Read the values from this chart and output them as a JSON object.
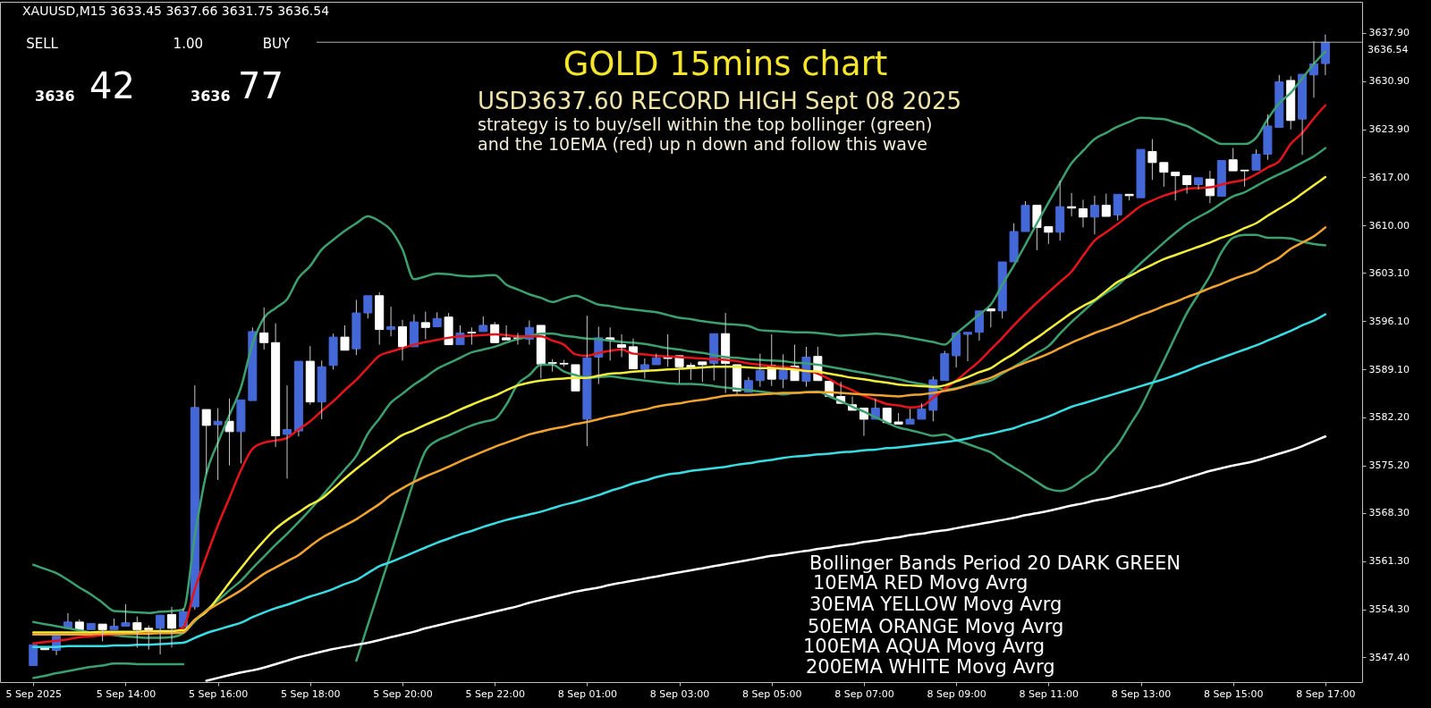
{
  "chart_data": {
    "type": "candlestick",
    "title": "GOLD 15mins chart",
    "subtitle": "USD3637.60  RECORD HIGH Sept 08 2025",
    "annotations": [
      "XAUUSD,M15  3633.45 3637.66 3631.75 3636.54",
      "SELL",
      "1.00",
      "BUY",
      "3636",
      "42",
      "3636",
      "77",
      "strategy is to buy/sell within the top bollinger (green)",
      "and the 10EMA (red) up n down and follow this wave",
      "Bollinger Bands Period 20 DARK GREEN",
      "10EMA RED Movg Avrg",
      "30EMA YELLOW Movg Avrg",
      "50EMA ORANGE Movg Avrg",
      "100EMA AQUA Movg Avrg",
      "200EMA WHITE Movg Avrg"
    ],
    "categories": [
      "5 Sep 2025",
      null,
      null,
      null,
      null,
      null,
      null,
      null,
      "5 Sep 14:00",
      null,
      null,
      null,
      null,
      null,
      null,
      null,
      "5 Sep 16:00",
      null,
      null,
      null,
      null,
      null,
      null,
      null,
      "5 Sep 18:00",
      null,
      null,
      null,
      null,
      null,
      null,
      null,
      "5 Sep 20:00",
      null,
      null,
      null,
      null,
      null,
      null,
      null,
      "5 Sep 22:00",
      null,
      null,
      null,
      null,
      null,
      null,
      null,
      "8 Sep 01:00",
      null,
      null,
      null,
      null,
      null,
      null,
      null,
      "8 Sep 03:00",
      null,
      null,
      null,
      null,
      null,
      null,
      null,
      "8 Sep 05:00",
      null,
      null,
      null,
      null,
      null,
      null,
      null,
      "8 Sep 07:00",
      null,
      null,
      null,
      null,
      null,
      null,
      null,
      "8 Sep 09:00",
      null,
      null,
      null,
      null,
      null,
      null,
      null,
      "8 Sep 11:00",
      null,
      null,
      null,
      null,
      null,
      null,
      null,
      "8 Sep 13:00",
      null,
      null,
      null,
      null,
      null,
      null,
      null,
      "8 Sep 15:00",
      null,
      null,
      null,
      null,
      null,
      null,
      null,
      "8 Sep 17:00"
    ],
    "ohlc": [
      [
        3546.2,
        3549.5,
        3546.0,
        3549.2
      ],
      [
        3548.8,
        3549.1,
        3548.2,
        3548.5
      ],
      [
        3548.4,
        3550.8,
        3547.7,
        3550.5
      ],
      [
        3551.6,
        3553.8,
        3551.4,
        3552.5
      ],
      [
        3552.5,
        3552.9,
        3551.2,
        3551.4
      ],
      [
        3551.4,
        3552.6,
        3551.1,
        3552.3
      ],
      [
        3552.2,
        3552.5,
        3549.7,
        3551.4
      ],
      [
        3551.4,
        3553.0,
        3551.1,
        3551.9
      ],
      [
        3551.9,
        3555.1,
        3551.7,
        3552.4
      ],
      [
        3552.4,
        3553.3,
        3548.8,
        3551.4
      ],
      [
        3551.6,
        3552.0,
        3548.5,
        3551.4
      ],
      [
        3551.6,
        3553.8,
        3547.8,
        3553.5
      ],
      [
        3553.6,
        3554.7,
        3548.8,
        3551.6
      ],
      [
        3551.8,
        3554.5,
        3551.5,
        3554.0
      ],
      [
        3554.7,
        3586.8,
        3554.3,
        3583.6
      ],
      [
        3583.3,
        3583.6,
        3574.0,
        3581.0
      ],
      [
        3581.1,
        3583.5,
        3573.1,
        3581.6
      ],
      [
        3581.6,
        3584.9,
        3575.2,
        3580.1
      ],
      [
        3580.1,
        3585.0,
        3575.5,
        3584.7
      ],
      [
        3584.6,
        3595.2,
        3584.4,
        3594.6
      ],
      [
        3594.4,
        3598.1,
        3592.0,
        3593.0
      ],
      [
        3593.0,
        3595.8,
        3577.9,
        3579.5
      ],
      [
        3579.7,
        3586.8,
        3573.3,
        3580.4
      ],
      [
        3580.2,
        3590.4,
        3579.4,
        3590.3
      ],
      [
        3590.3,
        3592.5,
        3584.0,
        3584.4
      ],
      [
        3584.4,
        3590.4,
        3581.9,
        3589.5
      ],
      [
        3589.7,
        3594.3,
        3589.1,
        3593.8
      ],
      [
        3593.8,
        3595.5,
        3591.8,
        3591.9
      ],
      [
        3592.1,
        3599.2,
        3591.2,
        3597.3
      ],
      [
        3597.3,
        3599.9,
        3596.5,
        3599.8
      ],
      [
        3599.8,
        3600.3,
        3592.7,
        3594.9
      ],
      [
        3594.9,
        3598.2,
        3593.9,
        3595.3
      ],
      [
        3595.3,
        3596.3,
        3590.4,
        3592.4
      ],
      [
        3592.4,
        3597.1,
        3592.2,
        3596.0
      ],
      [
        3595.9,
        3597.5,
        3593.5,
        3595.2
      ],
      [
        3595.3,
        3597.4,
        3595.2,
        3596.5
      ],
      [
        3596.7,
        3597.3,
        3592.6,
        3592.7
      ],
      [
        3592.7,
        3595.5,
        3592.6,
        3594.4
      ],
      [
        3594.5,
        3595.2,
        3592.7,
        3594.4
      ],
      [
        3594.6,
        3596.8,
        3594.5,
        3595.5
      ],
      [
        3595.6,
        3596.0,
        3592.7,
        3593.0
      ],
      [
        3593.7,
        3595.5,
        3593.3,
        3593.4
      ],
      [
        3593.7,
        3594.4,
        3592.7,
        3593.6
      ],
      [
        3593.5,
        3596.2,
        3592.7,
        3595.2
      ],
      [
        3595.5,
        3595.6,
        3587.8,
        3589.9
      ],
      [
        3590.1,
        3590.6,
        3588.8,
        3590.0
      ],
      [
        3590.0,
        3590.5,
        3589.5,
        3589.9
      ],
      [
        3589.8,
        3590.1,
        3585.8,
        3586.0
      ],
      [
        3581.9,
        3596.9,
        3578.0,
        3590.8
      ],
      [
        3590.9,
        3595.3,
        3587.0,
        3593.7
      ],
      [
        3593.7,
        3595.2,
        3590.4,
        3593.3
      ],
      [
        3592.7,
        3594.2,
        3590.9,
        3592.3
      ],
      [
        3592.4,
        3593.6,
        3589.1,
        3589.2
      ],
      [
        3589.1,
        3590.7,
        3587.8,
        3589.8
      ],
      [
        3589.8,
        3591.4,
        3589.7,
        3590.8
      ],
      [
        3591.0,
        3594.2,
        3589.5,
        3590.7
      ],
      [
        3591.1,
        3591.3,
        3587.1,
        3589.5
      ],
      [
        3589.7,
        3590.1,
        3587.6,
        3589.4
      ],
      [
        3590.2,
        3590.5,
        3587.3,
        3589.8
      ],
      [
        3590.0,
        3594.4,
        3587.5,
        3594.3
      ],
      [
        3594.3,
        3597.3,
        3585.7,
        3590.0
      ],
      [
        3589.8,
        3590.0,
        3585.5,
        3586.0
      ],
      [
        3585.8,
        3588.0,
        3585.5,
        3587.5
      ],
      [
        3587.5,
        3591.4,
        3586.6,
        3589.0
      ],
      [
        3589.7,
        3594.2,
        3586.7,
        3587.7
      ],
      [
        3587.7,
        3591.3,
        3586.4,
        3589.0
      ],
      [
        3589.6,
        3592.7,
        3587.3,
        3587.5
      ],
      [
        3587.4,
        3592.4,
        3586.6,
        3590.9
      ],
      [
        3591.0,
        3592.4,
        3587.2,
        3587.5
      ],
      [
        3587.4,
        3587.6,
        3584.9,
        3585.2
      ],
      [
        3585.2,
        3587.3,
        3583.9,
        3584.2
      ],
      [
        3584.0,
        3585.2,
        3582.9,
        3583.2
      ],
      [
        3583.5,
        3583.7,
        3579.5,
        3581.9
      ],
      [
        3581.9,
        3584.9,
        3581.7,
        3583.5
      ],
      [
        3583.5,
        3583.8,
        3581.2,
        3581.4
      ],
      [
        3581.5,
        3582.8,
        3581.0,
        3581.2
      ],
      [
        3581.2,
        3583.4,
        3581.0,
        3581.9
      ],
      [
        3581.9,
        3584.2,
        3581.7,
        3583.4
      ],
      [
        3583.2,
        3588.1,
        3581.6,
        3587.6
      ],
      [
        3587.5,
        3591.8,
        3587.3,
        3591.4
      ],
      [
        3591.1,
        3594.6,
        3589.4,
        3594.4
      ],
      [
        3594.2,
        3594.8,
        3590.3,
        3594.5
      ],
      [
        3594.5,
        3597.8,
        3593.3,
        3597.6
      ],
      [
        3597.9,
        3598.0,
        3595.2,
        3597.6
      ],
      [
        3597.6,
        3605.0,
        3596.5,
        3604.7
      ],
      [
        3604.7,
        3610.3,
        3604.5,
        3609.1
      ],
      [
        3609.1,
        3613.5,
        3608.9,
        3612.9
      ],
      [
        3612.9,
        3613.1,
        3606.4,
        3609.7
      ],
      [
        3609.8,
        3610.1,
        3607.3,
        3609.0
      ],
      [
        3609.0,
        3616.5,
        3607.8,
        3612.7
      ],
      [
        3612.7,
        3614.7,
        3611.3,
        3612.5
      ],
      [
        3612.4,
        3613.7,
        3609.7,
        3611.2
      ],
      [
        3611.2,
        3614.3,
        3608.7,
        3612.9
      ],
      [
        3612.9,
        3614.6,
        3611.0,
        3611.3
      ],
      [
        3611.5,
        3614.7,
        3610.7,
        3614.5
      ],
      [
        3614.5,
        3614.7,
        3613.6,
        3614.3
      ],
      [
        3614.0,
        3621.2,
        3613.8,
        3621.0
      ],
      [
        3620.7,
        3622.5,
        3616.6,
        3619.1
      ],
      [
        3619.1,
        3619.3,
        3615.6,
        3617.7
      ],
      [
        3617.7,
        3617.9,
        3613.6,
        3617.2
      ],
      [
        3617.2,
        3617.5,
        3614.6,
        3615.9
      ],
      [
        3615.9,
        3617.2,
        3615.2,
        3616.9
      ],
      [
        3616.7,
        3617.9,
        3613.2,
        3614.3
      ],
      [
        3614.2,
        3619.7,
        3614.0,
        3619.4
      ],
      [
        3619.5,
        3621.2,
        3617.7,
        3617.9
      ],
      [
        3618.0,
        3618.3,
        3615.6,
        3617.9
      ],
      [
        3618.0,
        3621.0,
        3617.8,
        3620.3
      ],
      [
        3620.3,
        3626.1,
        3619.5,
        3624.4
      ],
      [
        3624.2,
        3631.8,
        3623.9,
        3630.8
      ],
      [
        3631.0,
        3631.6,
        3623.9,
        3625.2
      ],
      [
        3625.4,
        3632.2,
        3620.2,
        3631.9
      ],
      [
        3631.8,
        3636.7,
        3628.5,
        3633.4
      ],
      [
        3633.45,
        3637.66,
        3631.75,
        3636.54
      ]
    ],
    "colors": [
      "#4468d8",
      "#ffffff",
      "#4468d8",
      "#4468d8",
      "#ffffff",
      "#4468d8",
      "#ffffff",
      "#4468d8",
      "#4468d8",
      "#ffffff",
      "#ffffff",
      "#4468d8",
      "#ffffff",
      "#4468d8",
      "#4468d8",
      "#ffffff",
      "#4468d8",
      "#ffffff",
      "#4468d8",
      "#4468d8",
      "#ffffff",
      "#ffffff",
      "#4468d8",
      "#4468d8",
      "#ffffff",
      "#4468d8",
      "#4468d8",
      "#ffffff",
      "#4468d8",
      "#4468d8",
      "#ffffff",
      "#4468d8",
      "#ffffff",
      "#4468d8",
      "#ffffff",
      "#4468d8",
      "#ffffff",
      "#4468d8",
      "#ffffff",
      "#4468d8",
      "#ffffff",
      "#ffffff",
      "#ffffff",
      "#4468d8",
      "#ffffff",
      "#ffffff",
      "#ffffff",
      "#ffffff",
      "#4468d8",
      "#4468d8",
      "#ffffff",
      "#ffffff",
      "#ffffff",
      "#4468d8",
      "#4468d8",
      "#ffffff",
      "#ffffff",
      "#ffffff",
      "#ffffff",
      "#4468d8",
      "#ffffff",
      "#ffffff",
      "#4468d8",
      "#4468d8",
      "#ffffff",
      "#4468d8",
      "#ffffff",
      "#4468d8",
      "#ffffff",
      "#ffffff",
      "#ffffff",
      "#ffffff",
      "#ffffff",
      "#4468d8",
      "#ffffff",
      "#ffffff",
      "#4468d8",
      "#4468d8",
      "#4468d8",
      "#4468d8",
      "#4468d8",
      "#4468d8",
      "#4468d8",
      "#ffffff",
      "#4468d8",
      "#4468d8",
      "#4468d8",
      "#ffffff",
      "#ffffff",
      "#4468d8",
      "#ffffff",
      "#ffffff",
      "#4468d8",
      "#ffffff",
      "#4468d8",
      "#ffffff",
      "#4468d8",
      "#ffffff",
      "#ffffff",
      "#ffffff",
      "#ffffff",
      "#4468d8",
      "#ffffff",
      "#4468d8",
      "#ffffff",
      "#ffffff",
      "#4468d8",
      "#4468d8",
      "#4468d8",
      "#ffffff",
      "#4468d8",
      "#4468d8",
      "#4468d8"
    ],
    "series": [
      {
        "type": "line",
        "color": "#3ca06e",
        "values": [
          3560.8,
          3560.2,
          3559.6,
          3558.6,
          3557.5,
          3556.5,
          3555.3,
          3554.1,
          3554.0,
          3553.9,
          3553.8,
          3554.0,
          3554.1,
          3554.3,
          3565.0,
          3574.0,
          3578.5,
          3582.5,
          3586.5,
          3592.8,
          3596.6,
          3598.0,
          3599.3,
          3602.4,
          3604.1,
          3606.5,
          3607.9,
          3609.2,
          3610.3,
          3611.3,
          3610.6,
          3609.3,
          3606.5,
          3602.2,
          3602.6,
          3603.0,
          3602.9,
          3602.7,
          3602.6,
          3602.7,
          3602.8,
          3601.4,
          3600.7,
          3600.0,
          3599.5,
          3598.9,
          3599.4,
          3599.8,
          3599.2,
          3598.5,
          3598.3,
          3598.0,
          3597.8,
          3597.6,
          3597.4,
          3597.0,
          3596.6,
          3596.4,
          3596.1,
          3595.9,
          3595.7,
          3595.6,
          3595.4,
          3594.8,
          3594.7,
          3594.6,
          3594.5,
          3594.5,
          3594.4,
          3594.2,
          3594.0,
          3594.1,
          3594.2,
          3594.3,
          3594.2,
          3594.0,
          3593.7,
          3593.4,
          3593.1,
          3592.7,
          3594.3,
          3595.7,
          3597.1,
          3598.5,
          3601.4,
          3604.2,
          3607.2,
          3610.3,
          3613.3,
          3616.2,
          3619.0,
          3620.8,
          3622.5,
          3623.4,
          3624.3,
          3625.0,
          3625.6,
          3625.5,
          3625.4,
          3624.9,
          3624.4,
          3623.5,
          3622.6,
          3621.8,
          3621.8,
          3621.8,
          3622.7,
          3625.4,
          3627.7,
          3629.2,
          3631.3,
          3633.4,
          3635.2
        ]
      },
      {
        "type": "line",
        "color": "#3ca06e",
        "values": [
          3552.5,
          3552.2,
          3551.9,
          3551.6,
          3551.3,
          3551.0,
          3550.8,
          3550.6,
          3550.4,
          3550.3,
          3550.2,
          3550.2,
          3550.3,
          3550.9,
          3552.6,
          3554.2,
          3555.6,
          3557.1,
          3558.5,
          3560.3,
          3562.0,
          3563.7,
          3565.3,
          3567.0,
          3568.8,
          3570.7,
          3572.7,
          3574.6,
          3576.6,
          3579.8,
          3582.0,
          3584.3,
          3585.6,
          3586.9,
          3588.0,
          3589.2,
          3590.0,
          3590.8,
          3591.6,
          3592.0,
          3592.4,
          3593.0,
          3593.5,
          3593.9,
          3594.3,
          3594.3,
          3594.0,
          3593.8,
          3593.6,
          3593.5,
          3593.3,
          3593.1,
          3593.0,
          3592.8,
          3592.5,
          3592.2,
          3592.0,
          3591.7,
          3591.5,
          3591.2,
          3590.9,
          3590.8,
          3590.6,
          3590.5,
          3590.4,
          3590.3,
          3590.1,
          3590.0,
          3589.8,
          3589.5,
          3589.2,
          3588.9,
          3588.6,
          3588.3,
          3588.0,
          3587.7,
          3587.3,
          3587.0,
          3586.6,
          3586.2,
          3586.4,
          3586.8,
          3587.1,
          3587.5,
          3588.5,
          3589.5,
          3590.5,
          3591.5,
          3592.5,
          3594.3,
          3596.0,
          3597.5,
          3599.0,
          3600.2,
          3601.3,
          3602.9,
          3604.5,
          3606.0,
          3607.5,
          3608.9,
          3610.2,
          3611.2,
          3612.1,
          3613.2,
          3614.2,
          3614.8,
          3615.7,
          3616.6,
          3617.4,
          3618.2,
          3619.1,
          3620.0,
          3621.2
        ]
      },
      {
        "type": "line",
        "color": "#3ca06e",
        "values": [
          3544.4,
          3544.7,
          3545.1,
          3545.4,
          3545.7,
          3546.0,
          3546.2,
          3546.5,
          3546.5,
          3546.4,
          3546.4,
          3546.4,
          3546.4,
          3546.4,
          null,
          null,
          null,
          null,
          null,
          null,
          null,
          null,
          null,
          null,
          null,
          null,
          null,
          null,
          3546.9,
          3552.1,
          3557.3,
          3562.5,
          3567.8,
          3573.0,
          3577.3,
          3578.8,
          3579.5,
          3580.3,
          3581.0,
          3581.5,
          3581.9,
          3584.0,
          3587.0,
          3588.3,
          3589.8,
          3589.8,
          3588.8,
          3588.3,
          3587.9,
          3588.0,
          3588.1,
          3587.9,
          3587.7,
          3587.5,
          3587.3,
          3587.1,
          3587.0,
          3587.0,
          3586.9,
          3586.7,
          3586.5,
          3586.3,
          3586.1,
          3585.9,
          3585.7,
          3585.5,
          3585.7,
          3585.8,
          3585.9,
          3585.2,
          3584.5,
          3583.7,
          3583.0,
          3582.2,
          3581.4,
          3580.7,
          3580.3,
          3579.9,
          3579.5,
          3579.7,
          3578.9,
          3578.3,
          3577.7,
          3577.1,
          3575.9,
          3574.9,
          3573.9,
          3572.8,
          3571.8,
          3571.5,
          3572.0,
          3573.2,
          3574.3,
          3576.3,
          3578.2,
          3580.9,
          3583.6,
          3587.0,
          3590.4,
          3593.9,
          3597.3,
          3600.0,
          3602.7,
          3606.1,
          3608.2,
          3608.6,
          3608.6,
          3608.2,
          3608.2,
          3608.1,
          3607.6,
          3607.3,
          3607.1
        ]
      },
      {
        "type": "line",
        "color": "#e5141b",
        "values": [
          3549.4,
          3549.6,
          3549.8,
          3550.0,
          3550.3,
          3550.4,
          3550.6,
          3550.7,
          3550.8,
          3550.9,
          3550.9,
          3551.0,
          3551.1,
          3551.7,
          3557.3,
          3562.0,
          3566.5,
          3570.5,
          3574.5,
          3577.6,
          3578.5,
          3578.8,
          3579.2,
          3580.4,
          3581.6,
          3583.1,
          3584.5,
          3586.1,
          3587.6,
          3589.4,
          3591.1,
          3591.7,
          3592.2,
          3592.7,
          3593.1,
          3593.4,
          3593.7,
          3593.9,
          3594.0,
          3594.1,
          3594.2,
          3594.1,
          3593.9,
          3593.9,
          3593.9,
          3593.3,
          3592.7,
          3591.3,
          3591.1,
          3591.5,
          3591.8,
          3592.0,
          3591.4,
          3591.3,
          3591.1,
          3591.0,
          3590.9,
          3590.8,
          3590.7,
          3590.6,
          3590.5,
          3590.3,
          3590.0,
          3589.8,
          3589.6,
          3589.5,
          3589.3,
          3588.9,
          3588.5,
          3587.7,
          3586.8,
          3586.1,
          3585.3,
          3584.7,
          3584.1,
          3583.9,
          3583.6,
          3583.8,
          3585.0,
          3586.3,
          3587.5,
          3588.9,
          3590.3,
          3592.0,
          3593.7,
          3595.5,
          3597.2,
          3598.8,
          3600.3,
          3601.8,
          3603.3,
          3605.6,
          3607.8,
          3609.0,
          3610.2,
          3611.5,
          3612.8,
          3613.6,
          3614.3,
          3614.8,
          3615.3,
          3615.4,
          3615.5,
          3615.9,
          3616.3,
          3616.6,
          3617.4,
          3618.4,
          3619.3,
          3621.8,
          3623.4,
          3625.5,
          3627.4
        ]
      },
      {
        "type": "line",
        "color": "#f2ee3a",
        "values": [
          3551.0,
          3551.0,
          3551.0,
          3551.0,
          3551.0,
          3551.0,
          3551.1,
          3551.1,
          3551.1,
          3551.1,
          3551.2,
          3551.2,
          3551.2,
          3551.3,
          3552.8,
          3554.0,
          3556.0,
          3558.2,
          3560.3,
          3562.4,
          3564.3,
          3566.0,
          3567.3,
          3568.4,
          3569.5,
          3570.4,
          3571.8,
          3573.3,
          3574.7,
          3576.0,
          3577.3,
          3578.5,
          3579.6,
          3580.3,
          3581.1,
          3581.8,
          3582.5,
          3583.3,
          3584.0,
          3584.7,
          3585.3,
          3586.1,
          3586.8,
          3587.2,
          3587.5,
          3587.7,
          3587.8,
          3587.9,
          3587.9,
          3588.2,
          3588.5,
          3588.6,
          3588.8,
          3588.9,
          3589.0,
          3589.1,
          3589.2,
          3589.3,
          3589.4,
          3589.5,
          3589.5,
          3589.5,
          3589.4,
          3589.3,
          3589.3,
          3589.2,
          3589.1,
          3588.9,
          3588.8,
          3588.5,
          3588.2,
          3587.9,
          3587.7,
          3587.4,
          3587.2,
          3586.9,
          3586.8,
          3586.7,
          3586.6,
          3586.8,
          3587.4,
          3588.0,
          3588.7,
          3589.3,
          3590.4,
          3591.4,
          3592.6,
          3593.7,
          3594.9,
          3596.1,
          3597.3,
          3598.3,
          3599.2,
          3600.5,
          3601.8,
          3602.6,
          3603.5,
          3604.3,
          3605.1,
          3605.7,
          3606.3,
          3606.9,
          3607.5,
          3608.2,
          3608.8,
          3609.6,
          3610.3,
          3611.4,
          3612.4,
          3613.4,
          3614.6,
          3615.8,
          3617.0
        ]
      },
      {
        "type": "line",
        "color": "#f0a32e",
        "values": [
          3550.7,
          3550.7,
          3550.7,
          3550.7,
          3550.7,
          3550.7,
          3550.8,
          3550.8,
          3550.8,
          3550.8,
          3550.8,
          3550.9,
          3550.9,
          3551.0,
          3552.8,
          3554.1,
          3555.1,
          3556.1,
          3557.1,
          3558.3,
          3559.5,
          3560.4,
          3561.3,
          3562.2,
          3563.5,
          3564.7,
          3565.6,
          3566.5,
          3567.4,
          3568.5,
          3569.6,
          3570.9,
          3571.9,
          3572.8,
          3573.6,
          3574.3,
          3575.0,
          3575.8,
          3576.5,
          3577.2,
          3577.9,
          3578.5,
          3579.1,
          3579.7,
          3580.1,
          3580.5,
          3580.8,
          3581.2,
          3581.5,
          3581.9,
          3582.3,
          3582.6,
          3583.0,
          3583.3,
          3583.7,
          3584.0,
          3584.2,
          3584.5,
          3584.7,
          3585.0,
          3585.3,
          3585.4,
          3585.4,
          3585.5,
          3585.6,
          3585.7,
          3585.7,
          3585.8,
          3585.8,
          3585.8,
          3585.7,
          3585.6,
          3585.5,
          3585.4,
          3585.3,
          3585.2,
          3585.4,
          3585.5,
          3585.7,
          3586.0,
          3586.3,
          3586.8,
          3587.4,
          3587.9,
          3588.7,
          3589.4,
          3590.1,
          3590.7,
          3591.4,
          3592.2,
          3593.0,
          3593.7,
          3594.4,
          3595.0,
          3595.6,
          3596.3,
          3597.0,
          3597.6,
          3598.3,
          3598.9,
          3599.6,
          3600.2,
          3600.9,
          3601.5,
          3602.2,
          3602.8,
          3603.4,
          3604.4,
          3605.3,
          3606.6,
          3607.5,
          3608.4,
          3609.7
        ]
      },
      {
        "type": "line",
        "color": "#38dde3",
        "values": [
          3548.9,
          3548.9,
          3548.9,
          3549.0,
          3549.0,
          3549.0,
          3549.0,
          3549.1,
          3549.1,
          3549.2,
          3549.2,
          3549.3,
          3549.4,
          3549.5,
          3550.2,
          3550.9,
          3551.4,
          3551.9,
          3552.4,
          3553.2,
          3553.9,
          3554.5,
          3555.0,
          3555.6,
          3556.2,
          3556.7,
          3557.3,
          3558.0,
          3558.6,
          3559.6,
          3560.6,
          3561.2,
          3561.9,
          3562.6,
          3563.3,
          3564.0,
          3564.6,
          3565.2,
          3565.7,
          3566.3,
          3566.8,
          3567.3,
          3567.7,
          3568.1,
          3568.5,
          3569.0,
          3569.5,
          3569.9,
          3570.4,
          3570.9,
          3571.5,
          3572.0,
          3572.6,
          3573.0,
          3573.5,
          3573.9,
          3574.1,
          3574.4,
          3574.6,
          3574.8,
          3575.0,
          3575.3,
          3575.5,
          3575.8,
          3576.0,
          3576.3,
          3576.5,
          3576.6,
          3576.8,
          3576.9,
          3577.1,
          3577.2,
          3577.4,
          3577.5,
          3577.7,
          3577.8,
          3578.0,
          3578.2,
          3578.4,
          3578.6,
          3578.8,
          3579.1,
          3579.5,
          3579.8,
          3580.2,
          3580.6,
          3581.2,
          3581.7,
          3582.3,
          3583.0,
          3583.7,
          3584.2,
          3584.7,
          3585.2,
          3585.7,
          3586.2,
          3586.7,
          3587.2,
          3587.7,
          3588.3,
          3588.9,
          3589.6,
          3590.2,
          3590.8,
          3591.4,
          3592.0,
          3592.6,
          3593.3,
          3594.0,
          3594.7,
          3595.5,
          3596.2,
          3597.1
        ]
      },
      {
        "type": "line",
        "color": "#ffffff",
        "values": [
          null,
          null,
          null,
          null,
          null,
          null,
          null,
          null,
          null,
          null,
          null,
          null,
          null,
          null,
          null,
          3544.0,
          3544.4,
          3544.8,
          3545.2,
          3545.5,
          3545.9,
          3546.4,
          3546.9,
          3547.4,
          3547.8,
          3548.2,
          3548.6,
          3548.9,
          3549.2,
          3549.5,
          3549.9,
          3550.3,
          3550.7,
          3551.1,
          3551.6,
          3552.0,
          3552.4,
          3552.8,
          3553.2,
          3553.6,
          3554.0,
          3554.4,
          3554.8,
          3555.3,
          3555.7,
          3556.1,
          3556.5,
          3556.9,
          3557.2,
          3557.5,
          3557.9,
          3558.2,
          3558.5,
          3558.8,
          3559.1,
          3559.4,
          3559.7,
          3560.0,
          3560.3,
          3560.6,
          3560.9,
          3561.2,
          3561.5,
          3561.8,
          3562.1,
          3562.3,
          3562.6,
          3562.8,
          3563.1,
          3563.3,
          3563.6,
          3563.8,
          3564.1,
          3564.3,
          3564.6,
          3564.8,
          3565.1,
          3565.3,
          3565.6,
          3565.8,
          3566.1,
          3566.4,
          3566.7,
          3567.0,
          3567.3,
          3567.6,
          3568.0,
          3568.3,
          3568.6,
          3569.0,
          3569.4,
          3569.7,
          3570.1,
          3570.4,
          3570.8,
          3571.2,
          3571.6,
          3572.0,
          3572.4,
          3572.9,
          3573.4,
          3573.9,
          3574.4,
          3574.8,
          3575.2,
          3575.5,
          3575.9,
          3576.4,
          3576.9,
          3577.4,
          3578.0,
          3578.7,
          3579.4
        ]
      }
    ],
    "ylim": [
      3543.8,
      3642.4
    ],
    "yticks": [
      {
        "value": 3547.4,
        "label": "3547.40"
      },
      {
        "value": 3554.3,
        "label": "3554.30"
      },
      {
        "value": 3561.3,
        "label": "3561.30"
      },
      {
        "value": 3568.3,
        "label": "3568.30"
      },
      {
        "value": 3575.2,
        "label": "3575.20"
      },
      {
        "value": 3582.2,
        "label": "3582.20"
      },
      {
        "value": 3589.1,
        "label": "3589.10"
      },
      {
        "value": 3596.1,
        "label": "3596.10"
      },
      {
        "value": 3603.1,
        "label": "3603.10"
      },
      {
        "value": 3610,
        "label": "3610.00"
      },
      {
        "value": 3617,
        "label": "3617.00"
      },
      {
        "value": 3623.9,
        "label": "3623.90"
      },
      {
        "value": 3630.9,
        "label": "3630.90"
      },
      {
        "value": 3637.9,
        "label": "3637.90"
      }
    ],
    "ref_lines": [
      {
        "axis": "y",
        "value": 3636.54,
        "label": "3636.54",
        "color": "#b0b0b0"
      }
    ]
  }
}
